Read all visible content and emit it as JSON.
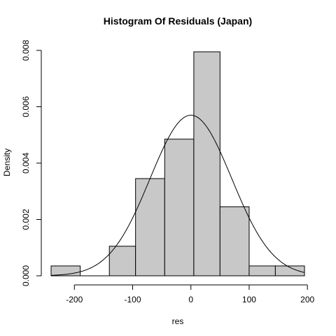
{
  "chart_data": {
    "type": "bar",
    "title": "Histogram Of Residuals (Japan)",
    "xlabel": "res",
    "ylabel": "Density",
    "xlim": [
      -240,
      195
    ],
    "ylim": [
      0,
      0.008
    ],
    "x_ticks": [
      -200,
      -100,
      0,
      100,
      200
    ],
    "x_tick_labels": [
      "-200",
      "-100",
      "0",
      "100",
      "200"
    ],
    "y_ticks": [
      0,
      0.002,
      0.004,
      0.006,
      0.008
    ],
    "y_tick_labels": [
      "0.000",
      "0.002",
      "0.004",
      "0.006",
      "0.008"
    ],
    "bins": [
      {
        "start": -240,
        "end": -190,
        "density": 0.00035
      },
      {
        "start": -190,
        "end": -140,
        "density": 0
      },
      {
        "start": -140,
        "end": -95,
        "density": 0.00105
      },
      {
        "start": -95,
        "end": -45,
        "density": 0.00345
      },
      {
        "start": -45,
        "end": 5,
        "density": 0.00485
      },
      {
        "start": 5,
        "end": 50,
        "density": 0.00795
      },
      {
        "start": 50,
        "end": 100,
        "density": 0.00245
      },
      {
        "start": 100,
        "end": 145,
        "density": 0.00035
      },
      {
        "start": 145,
        "end": 195,
        "density": 0.00035
      }
    ],
    "normal_curve": {
      "mean": 0,
      "sd": 70,
      "peak_density": 0.0057
    },
    "grid": false,
    "legend": "none"
  }
}
